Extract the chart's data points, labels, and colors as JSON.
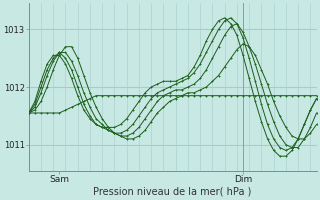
{
  "title": "Pression niveau de la mer( hPa )",
  "bg_color": "#c8e8e4",
  "grid_color": "#a8ccc8",
  "line_color": "#1a5c1a",
  "marker_color": "#1a6b1a",
  "yticks": [
    1011,
    1012,
    1013
  ],
  "ylim": [
    1010.55,
    1013.45
  ],
  "xlim": [
    0,
    47
  ],
  "xtick_positions": [
    5,
    35
  ],
  "xtick_labels": [
    "Sam",
    "Dim"
  ],
  "vline_x": 35,
  "n_points": 48,
  "series": [
    [
      1011.55,
      1011.55,
      1011.55,
      1011.55,
      1011.55,
      1011.55,
      1011.6,
      1011.65,
      1011.7,
      1011.75,
      1011.8,
      1011.85,
      1011.85,
      1011.85,
      1011.85,
      1011.85,
      1011.85,
      1011.85,
      1011.85,
      1011.85,
      1011.85,
      1011.85,
      1011.85,
      1011.85,
      1011.85,
      1011.85,
      1011.85,
      1011.85,
      1011.85,
      1011.85,
      1011.85,
      1011.85,
      1011.85,
      1011.85,
      1011.85,
      1011.85,
      1011.85,
      1011.85,
      1011.85,
      1011.85,
      1011.85,
      1011.85,
      1011.85,
      1011.85,
      1011.85,
      1011.85,
      1011.85,
      1011.85
    ],
    [
      1011.55,
      1011.6,
      1011.75,
      1012.0,
      1012.3,
      1012.55,
      1012.7,
      1012.7,
      1012.5,
      1012.2,
      1011.9,
      1011.65,
      1011.45,
      1011.3,
      1011.2,
      1011.15,
      1011.1,
      1011.1,
      1011.15,
      1011.25,
      1011.4,
      1011.55,
      1011.65,
      1011.75,
      1011.8,
      1011.85,
      1011.9,
      1011.9,
      1011.95,
      1012.0,
      1012.1,
      1012.2,
      1012.35,
      1012.5,
      1012.65,
      1012.75,
      1012.7,
      1012.55,
      1012.3,
      1012.05,
      1011.75,
      1011.5,
      1011.3,
      1011.15,
      1011.1,
      1011.1,
      1011.2,
      1011.35
    ],
    [
      1011.55,
      1011.65,
      1011.9,
      1012.2,
      1012.45,
      1012.6,
      1012.6,
      1012.45,
      1012.2,
      1011.9,
      1011.65,
      1011.45,
      1011.35,
      1011.25,
      1011.2,
      1011.15,
      1011.15,
      1011.2,
      1011.3,
      1011.45,
      1011.6,
      1011.75,
      1011.85,
      1011.9,
      1011.95,
      1011.95,
      1012.0,
      1012.05,
      1012.15,
      1012.3,
      1012.5,
      1012.7,
      1012.9,
      1013.05,
      1013.1,
      1012.95,
      1012.7,
      1012.4,
      1012.05,
      1011.7,
      1011.4,
      1011.15,
      1011.0,
      1010.95,
      1010.95,
      1011.1,
      1011.3,
      1011.55
    ],
    [
      1011.55,
      1011.7,
      1012.0,
      1012.3,
      1012.5,
      1012.6,
      1012.5,
      1012.3,
      1012.0,
      1011.7,
      1011.5,
      1011.35,
      1011.3,
      1011.25,
      1011.2,
      1011.2,
      1011.25,
      1011.35,
      1011.5,
      1011.65,
      1011.8,
      1011.9,
      1011.95,
      1012.0,
      1012.05,
      1012.1,
      1012.15,
      1012.25,
      1012.4,
      1012.6,
      1012.8,
      1013.0,
      1013.15,
      1013.2,
      1013.1,
      1012.85,
      1012.5,
      1012.1,
      1011.7,
      1011.35,
      1011.1,
      1010.95,
      1010.9,
      1010.95,
      1011.1,
      1011.35,
      1011.6,
      1011.8
    ],
    [
      1011.55,
      1011.75,
      1012.1,
      1012.4,
      1012.55,
      1012.55,
      1012.4,
      1012.15,
      1011.85,
      1011.6,
      1011.45,
      1011.35,
      1011.3,
      1011.3,
      1011.3,
      1011.35,
      1011.45,
      1011.6,
      1011.75,
      1011.9,
      1012.0,
      1012.05,
      1012.1,
      1012.1,
      1012.1,
      1012.15,
      1012.2,
      1012.35,
      1012.55,
      1012.8,
      1013.0,
      1013.15,
      1013.2,
      1013.1,
      1012.9,
      1012.55,
      1012.15,
      1011.75,
      1011.4,
      1011.1,
      1010.9,
      1010.8,
      1010.8,
      1010.9,
      1011.1,
      1011.35,
      1011.6,
      1011.8
    ]
  ]
}
